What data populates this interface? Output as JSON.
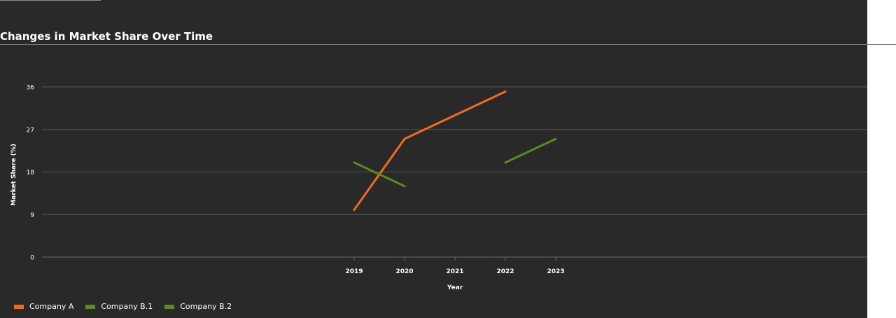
{
  "title": "Changes in Market Share Over Time",
  "chart_data": {
    "type": "line",
    "title": "Changes in Market Share Over Time",
    "xlabel": "Year",
    "ylabel": "Market Share (%)",
    "x": [
      "2019",
      "2020",
      "2021",
      "2022",
      "2023"
    ],
    "yticks": [
      0,
      9,
      18,
      27,
      36
    ],
    "ylim": [
      0,
      36
    ],
    "grid": true,
    "legend_position": "bottom-left",
    "series": [
      {
        "name": "Company A",
        "color": "#f26b1d",
        "points": [
          [
            2019,
            10
          ],
          [
            2020,
            25
          ],
          [
            2022,
            35
          ]
        ]
      },
      {
        "name": "Company B.1",
        "color": "#5d8a1f",
        "points": [
          [
            2019,
            20
          ],
          [
            2020,
            15
          ]
        ]
      },
      {
        "name": "Company B.2",
        "color": "#5d8a1f",
        "points": [
          [
            2022,
            20
          ],
          [
            2023,
            25
          ]
        ]
      }
    ]
  }
}
